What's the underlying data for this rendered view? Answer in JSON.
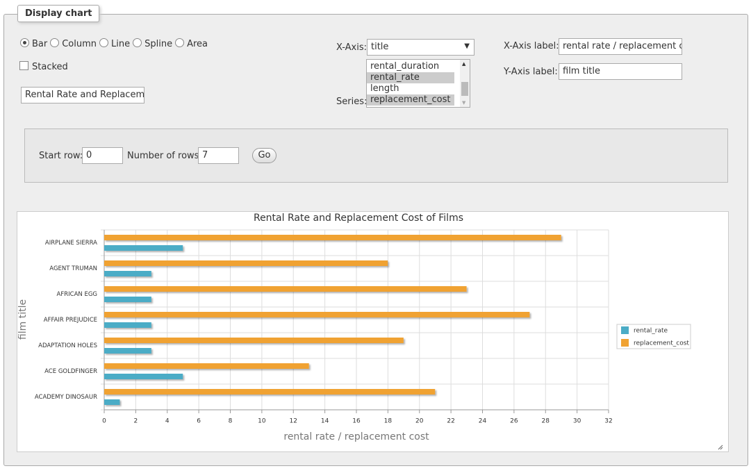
{
  "panel": {
    "legend": "Display chart"
  },
  "chart_type_options": [
    {
      "label": "Bar",
      "checked": true
    },
    {
      "label": "Column",
      "checked": false
    },
    {
      "label": "Line",
      "checked": false
    },
    {
      "label": "Spline",
      "checked": false
    },
    {
      "label": "Area",
      "checked": false
    }
  ],
  "stacked": {
    "label": "Stacked",
    "checked": false
  },
  "title_input": "Rental Rate and Replacemer",
  "x_axis": {
    "label": "X-Axis:",
    "value": "title"
  },
  "series_select": {
    "label": "Series:",
    "options": [
      {
        "text": "rental_duration",
        "selected": false
      },
      {
        "text": "rental_rate",
        "selected": true
      },
      {
        "text": "length",
        "selected": false
      },
      {
        "text": "replacement_cost",
        "selected": true
      }
    ]
  },
  "x_axis_label": {
    "label": "X-Axis label:",
    "value": "rental rate / replacement cost"
  },
  "y_axis_label": {
    "label": "Y-Axis label:",
    "value": "film title"
  },
  "rows": {
    "start_label": "Start row:",
    "start_value": 0,
    "number_label": "Number of rows:",
    "number_value": 7,
    "button": "Go"
  },
  "chart_data": {
    "type": "bar",
    "orientation": "horizontal",
    "title": "Rental Rate and Replacement Cost of Films",
    "x_label": "rental rate / replacement cost",
    "y_label": "film title",
    "categories": [
      "ACADEMY DINOSAUR",
      "ACE GOLDFINGER",
      "ADAPTATION HOLES",
      "AFFAIR PREJUDICE",
      "AFRICAN EGG",
      "AGENT TRUMAN",
      "AIRPLANE SIERRA"
    ],
    "series": [
      {
        "name": "rental_rate",
        "color": "#4bacc6",
        "values": [
          0.99,
          4.99,
          2.99,
          2.99,
          2.99,
          2.99,
          4.99
        ]
      },
      {
        "name": "replacement_cost",
        "color": "#f0a232",
        "values": [
          20.99,
          12.99,
          18.99,
          26.99,
          22.99,
          17.99,
          28.99
        ]
      }
    ],
    "xlim": [
      0,
      32
    ],
    "xticks": [
      0,
      2,
      4,
      6,
      8,
      10,
      12,
      14,
      16,
      18,
      20,
      22,
      24,
      26,
      28,
      30,
      32
    ],
    "grid": true,
    "legend": "right"
  }
}
